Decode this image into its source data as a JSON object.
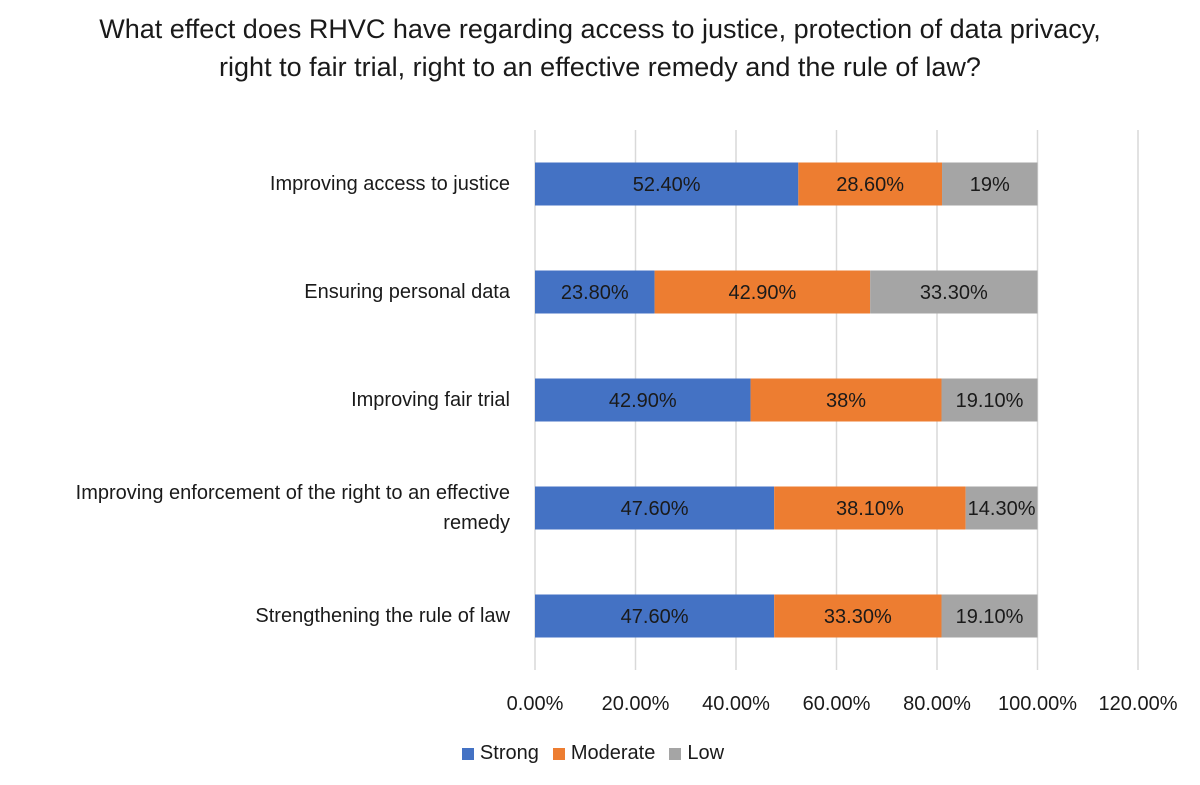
{
  "chart_data": {
    "type": "bar",
    "orientation": "horizontal",
    "stacked": true,
    "title_lines": [
      "What effect does RHVC have regarding access to justice, protection of data privacy,",
      "right to fair trial, right to an effective remedy and the rule of law?"
    ],
    "categories": [
      "Improving access to justice",
      "Ensuring personal data",
      "Improving fair trial",
      "Improving enforcement of the right to an effective remedy",
      "Strengthening the rule of law"
    ],
    "category_display_lines": [
      [
        "Improving access to justice"
      ],
      [
        "Ensuring personal data"
      ],
      [
        "Improving fair trial"
      ],
      [
        "Improving enforcement of the right to an effective",
        "remedy"
      ],
      [
        "Strengthening the rule of law"
      ]
    ],
    "series": [
      {
        "name": "Strong",
        "color": "#4472C4",
        "values": [
          52.4,
          23.8,
          42.9,
          47.6,
          47.6
        ],
        "labels": [
          "52.40%",
          "23.80%",
          "42.90%",
          "47.60%",
          "47.60%"
        ]
      },
      {
        "name": "Moderate",
        "color": "#ED7D31",
        "values": [
          28.6,
          42.9,
          38,
          38.1,
          33.3
        ],
        "labels": [
          "28.60%",
          "42.90%",
          "38%",
          "38.10%",
          "33.30%"
        ]
      },
      {
        "name": "Low",
        "color": "#A5A5A5",
        "values": [
          19,
          33.3,
          19.1,
          14.3,
          19.1
        ],
        "labels": [
          "19%",
          "33.30%",
          "19.10%",
          "14.30%",
          "19.10%"
        ]
      }
    ],
    "xlim": [
      0,
      120
    ],
    "x_ticks": [
      "0.00%",
      "20.00%",
      "40.00%",
      "60.00%",
      "80.00%",
      "100.00%",
      "120.00%"
    ],
    "grid": true,
    "legend_position": "bottom"
  }
}
